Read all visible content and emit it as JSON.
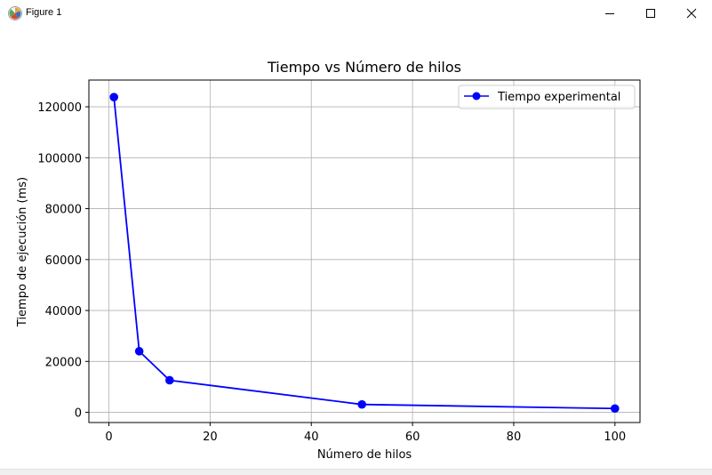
{
  "window": {
    "title": "Figure 1",
    "app_icon": "matplotlib-figure-icon",
    "controls": [
      "minimize-icon",
      "maximize-icon",
      "close-icon"
    ]
  },
  "chart_data": {
    "type": "line",
    "title": "Tiempo vs Número de hilos",
    "xlabel": "Número de hilos",
    "ylabel": "Tiempo de ejecución (ms)",
    "xlim": [
      -3.95,
      104.95
    ],
    "ylim": [
      -4000,
      130500
    ],
    "xticks": [
      0,
      20,
      40,
      60,
      80,
      100
    ],
    "yticks": [
      0,
      20000,
      40000,
      60000,
      80000,
      100000,
      120000
    ],
    "grid": true,
    "legend_position": "top-right",
    "series": [
      {
        "name": "Tiempo experimental",
        "color": "#0000ff",
        "marker": "circle",
        "x": [
          1,
          6,
          12,
          50,
          100
        ],
        "y": [
          123800,
          24000,
          12600,
          3100,
          1500
        ]
      }
    ]
  }
}
